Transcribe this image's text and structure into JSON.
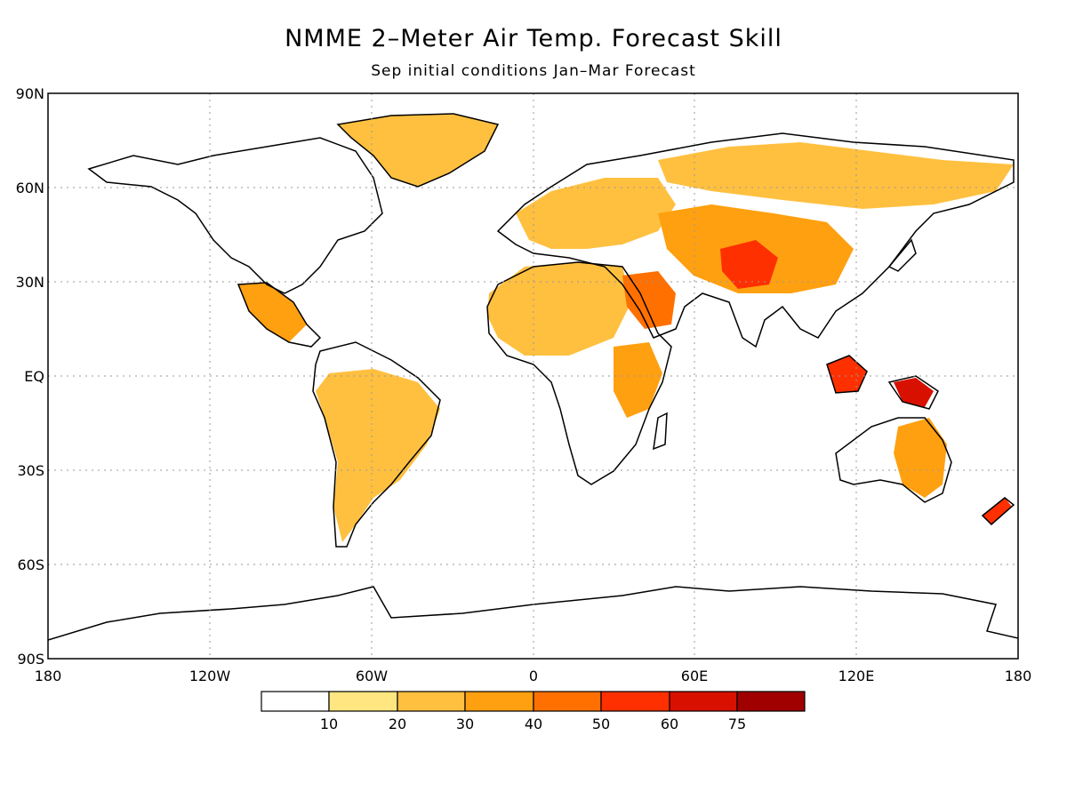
{
  "title": "NMME 2–Meter Air Temp. Forecast Skill",
  "subtitle": "Sep initial conditions  Jan–Mar Forecast",
  "axes": {
    "lat_labels": [
      "90N",
      "60N",
      "30N",
      "EQ",
      "30S",
      "60S",
      "90S"
    ],
    "lat_values": [
      90,
      60,
      30,
      0,
      -30,
      -60,
      -90
    ],
    "lon_labels": [
      "180",
      "120W",
      "60W",
      "0",
      "60E",
      "120E",
      "180"
    ],
    "lon_values": [
      -180,
      -120,
      -60,
      0,
      60,
      120,
      180
    ],
    "grid": true
  },
  "colorbar": {
    "labels": [
      "10",
      "20",
      "30",
      "40",
      "50",
      "60",
      "75"
    ],
    "colors": [
      "#ffffff",
      "#ffe680",
      "#ffc040",
      "#ffa010",
      "#ff7000",
      "#ff3000",
      "#d81000",
      "#a00000"
    ]
  },
  "skill_regions": [
    {
      "name": "Greenland",
      "level": 2
    },
    {
      "name": "Europe",
      "level": 2
    },
    {
      "name": "North Africa",
      "level": 2
    },
    {
      "name": "Arabia",
      "level": 4
    },
    {
      "name": "Central Asia",
      "level": 3
    },
    {
      "name": "Tibet",
      "level": 5
    },
    {
      "name": "Siberia",
      "level": 2
    },
    {
      "name": "Mexico",
      "level": 3
    },
    {
      "name": "South America",
      "level": 2
    },
    {
      "name": "East Africa",
      "level": 3
    },
    {
      "name": "Borneo",
      "level": 5
    },
    {
      "name": "New Guinea",
      "level": 6
    },
    {
      "name": "Australia East",
      "level": 3
    },
    {
      "name": "New Zealand",
      "level": 5
    }
  ]
}
